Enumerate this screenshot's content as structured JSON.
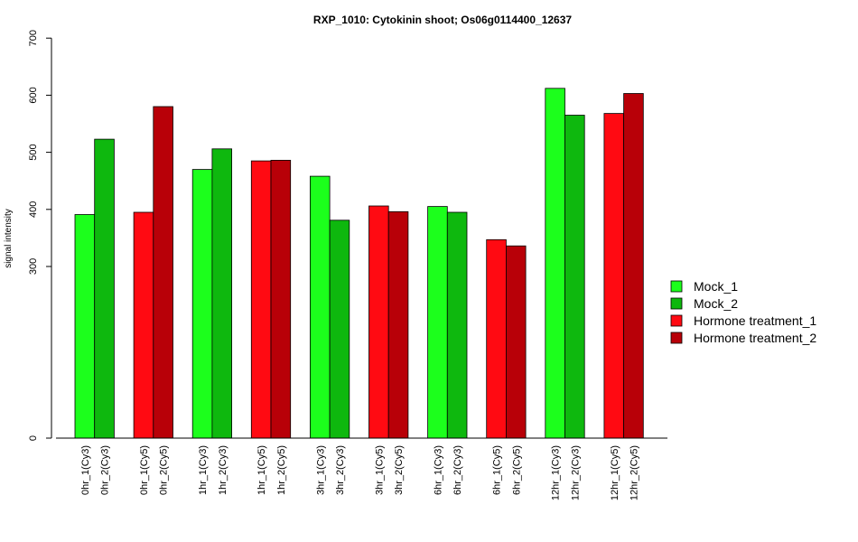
{
  "chart_data": {
    "type": "bar",
    "title": "RXP_1010: Cytokinin shoot; Os06g0114400_12637",
    "ylabel": "signal intensity",
    "xlabel": "",
    "y_axis_breaks": [
      0,
      300,
      400,
      500,
      600,
      700
    ],
    "y_tick_labels": [
      "0",
      "300",
      "400",
      "500",
      "600",
      "700"
    ],
    "bars": [
      {
        "label": "0hr_1(Cy3)",
        "value": 391,
        "series": "Mock_1"
      },
      {
        "label": "0hr_2(Cy3)",
        "value": 523,
        "series": "Mock_2"
      },
      {
        "label": "0hr_1(Cy5)",
        "value": 395,
        "series": "Hormone treatment_1"
      },
      {
        "label": "0hr_2(Cy5)",
        "value": 580,
        "series": "Hormone treatment_2"
      },
      {
        "label": "1hr_1(Cy3)",
        "value": 470,
        "series": "Mock_1"
      },
      {
        "label": "1hr_2(Cy3)",
        "value": 506,
        "series": "Mock_2"
      },
      {
        "label": "1hr_1(Cy5)",
        "value": 485,
        "series": "Hormone treatment_1"
      },
      {
        "label": "1hr_2(Cy5)",
        "value": 486,
        "series": "Hormone treatment_2"
      },
      {
        "label": "3hr_1(Cy3)",
        "value": 458,
        "series": "Mock_1"
      },
      {
        "label": "3hr_2(Cy3)",
        "value": 381,
        "series": "Mock_2"
      },
      {
        "label": "3hr_1(Cy5)",
        "value": 406,
        "series": "Hormone treatment_1"
      },
      {
        "label": "3hr_2(Cy5)",
        "value": 396,
        "series": "Hormone treatment_2"
      },
      {
        "label": "6hr_1(Cy3)",
        "value": 405,
        "series": "Mock_1"
      },
      {
        "label": "6hr_2(Cy3)",
        "value": 395,
        "series": "Mock_2"
      },
      {
        "label": "6hr_1(Cy5)",
        "value": 347,
        "series": "Hormone treatment_1"
      },
      {
        "label": "6hr_2(Cy5)",
        "value": 336,
        "series": "Hormone treatment_2"
      },
      {
        "label": "12hr_1(Cy3)",
        "value": 612,
        "series": "Mock_1"
      },
      {
        "label": "12hr_2(Cy3)",
        "value": 565,
        "series": "Mock_2"
      },
      {
        "label": "12hr_1(Cy5)",
        "value": 568,
        "series": "Hormone treatment_1"
      },
      {
        "label": "12hr_2(Cy5)",
        "value": 603,
        "series": "Hormone treatment_2"
      }
    ],
    "legend": {
      "placement": "right",
      "entries": [
        {
          "name": "Mock_1",
          "color": "#1cff1c"
        },
        {
          "name": "Mock_2",
          "color": "#0eb80e"
        },
        {
          "name": "Hormone treatment_1",
          "color": "#ff0a12"
        },
        {
          "name": "Hormone treatment_2",
          "color": "#b80008"
        }
      ]
    }
  }
}
